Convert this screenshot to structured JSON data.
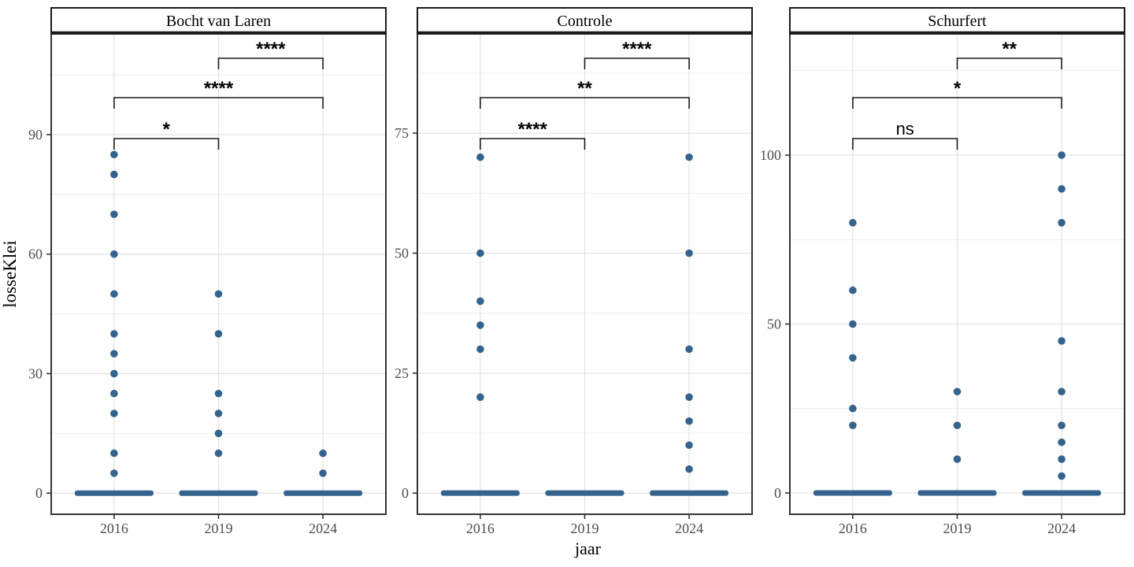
{
  "figure": {
    "x_axis_title": "jaar",
    "y_axis_title": "losseKlei",
    "colors": {
      "point": "#34638E",
      "grid_major": "#E3E3E3",
      "grid_minor": "#EDEDED",
      "panel_border": "#333333",
      "strip_border": "#1A1A1A",
      "axis_text": "#4D4D4D",
      "title_text": "#000000",
      "bracket": "#1A1A1A",
      "background": "#FFFFFF"
    }
  },
  "chart_data": {
    "type": "scatter",
    "xlabel": "jaar",
    "ylabel": "losseKlei",
    "categories": [
      "2016",
      "2019",
      "2024"
    ],
    "grid": true,
    "facets": [
      {
        "title": "Bocht van Laren",
        "y_ticks": [
          0,
          30,
          60,
          90
        ],
        "y_minor_ticks": [
          15,
          45,
          75,
          105
        ],
        "ylim": [
          -5.3,
          115.3
        ],
        "points": {
          "2016": [
            85,
            80,
            70,
            60,
            50,
            40,
            35,
            30,
            25,
            20,
            10,
            5
          ],
          "2019": [
            50,
            40,
            25,
            20,
            15,
            10
          ],
          "2024": [
            10,
            5
          ]
        },
        "zero_cluster": {
          "2016": true,
          "2019": true,
          "2024": true
        },
        "comparisons": [
          {
            "group1": "2016",
            "group2": "2019",
            "label": "*",
            "row": 0
          },
          {
            "group1": "2016",
            "group2": "2024",
            "label": "****",
            "row": 1
          },
          {
            "group1": "2019",
            "group2": "2024",
            "label": "****",
            "row": 2
          }
        ]
      },
      {
        "title": "Controle",
        "y_ticks": [
          0,
          25,
          50,
          75
        ],
        "y_minor_ticks": [
          12.5,
          37.5,
          62.5,
          87.5
        ],
        "ylim": [
          -4.4,
          95.7
        ],
        "points": {
          "2016": [
            70,
            50,
            40,
            35,
            30,
            20
          ],
          "2019": [],
          "2024": [
            70,
            50,
            30,
            20,
            15,
            10,
            5
          ]
        },
        "zero_cluster": {
          "2016": true,
          "2019": true,
          "2024": true
        },
        "comparisons": [
          {
            "group1": "2016",
            "group2": "2019",
            "label": "****",
            "row": 0
          },
          {
            "group1": "2016",
            "group2": "2024",
            "label": "**",
            "row": 1
          },
          {
            "group1": "2019",
            "group2": "2024",
            "label": "****",
            "row": 2
          }
        ]
      },
      {
        "title": "Schurfert",
        "y_ticks": [
          0,
          50,
          100
        ],
        "y_minor_ticks": [
          25,
          75,
          125
        ],
        "ylim": [
          -6.3,
          135.9
        ],
        "points": {
          "2016": [
            80,
            60,
            50,
            40,
            25,
            20
          ],
          "2019": [
            30,
            20,
            10
          ],
          "2024": [
            100,
            90,
            80,
            45,
            30,
            20,
            15,
            10,
            5
          ]
        },
        "zero_cluster": {
          "2016": true,
          "2019": true,
          "2024": true
        },
        "comparisons": [
          {
            "group1": "2016",
            "group2": "2019",
            "label": "ns",
            "row": 0
          },
          {
            "group1": "2016",
            "group2": "2024",
            "label": "*",
            "row": 1
          },
          {
            "group1": "2019",
            "group2": "2024",
            "label": "**",
            "row": 2
          }
        ]
      }
    ]
  }
}
